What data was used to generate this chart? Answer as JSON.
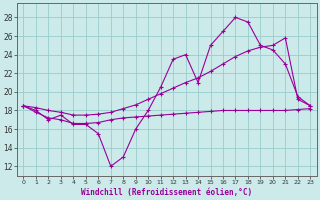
{
  "xlabel": "Windchill (Refroidissement éolien,°C)",
  "bg_color": "#cceaea",
  "line_color": "#990099",
  "grid_color": "#99cccc",
  "xlim": [
    -0.5,
    23.5
  ],
  "ylim": [
    11.0,
    29.5
  ],
  "xticks": [
    0,
    1,
    2,
    3,
    4,
    5,
    6,
    7,
    8,
    9,
    10,
    11,
    12,
    13,
    14,
    15,
    16,
    17,
    18,
    19,
    20,
    21,
    22,
    23
  ],
  "yticks": [
    12,
    14,
    16,
    18,
    20,
    22,
    24,
    26,
    28
  ],
  "line1_x": [
    0,
    1,
    2,
    3,
    4,
    5,
    6,
    7,
    8,
    9,
    10,
    11,
    12,
    13,
    14,
    15,
    16,
    17,
    18,
    19,
    20,
    21,
    22,
    23
  ],
  "line1_y": [
    18.5,
    18.0,
    17.0,
    17.5,
    16.5,
    16.5,
    15.5,
    12.0,
    13.0,
    16.0,
    18.0,
    20.5,
    23.5,
    24.0,
    21.0,
    25.0,
    26.5,
    28.0,
    27.5,
    25.0,
    24.5,
    23.0,
    19.5,
    18.5
  ],
  "line2_x": [
    0,
    1,
    2,
    3,
    4,
    5,
    6,
    7,
    8,
    9,
    10,
    11,
    12,
    13,
    14,
    15,
    16,
    17,
    18,
    19,
    20,
    21,
    22,
    23
  ],
  "line2_y": [
    18.5,
    17.8,
    17.2,
    17.0,
    16.6,
    16.6,
    16.7,
    17.0,
    17.2,
    17.3,
    17.4,
    17.5,
    17.6,
    17.7,
    17.8,
    17.9,
    18.0,
    18.0,
    18.0,
    18.0,
    18.0,
    18.0,
    18.1,
    18.2
  ],
  "line3_x": [
    0,
    1,
    2,
    3,
    4,
    5,
    6,
    7,
    8,
    9,
    10,
    11,
    12,
    13,
    14,
    15,
    16,
    17,
    18,
    19,
    20,
    21,
    22,
    23
  ],
  "line3_y": [
    18.5,
    18.3,
    18.0,
    17.8,
    17.5,
    17.5,
    17.6,
    17.8,
    18.2,
    18.6,
    19.2,
    19.8,
    20.4,
    21.0,
    21.5,
    22.2,
    23.0,
    23.8,
    24.4,
    24.8,
    25.0,
    25.8,
    19.2,
    18.5
  ]
}
